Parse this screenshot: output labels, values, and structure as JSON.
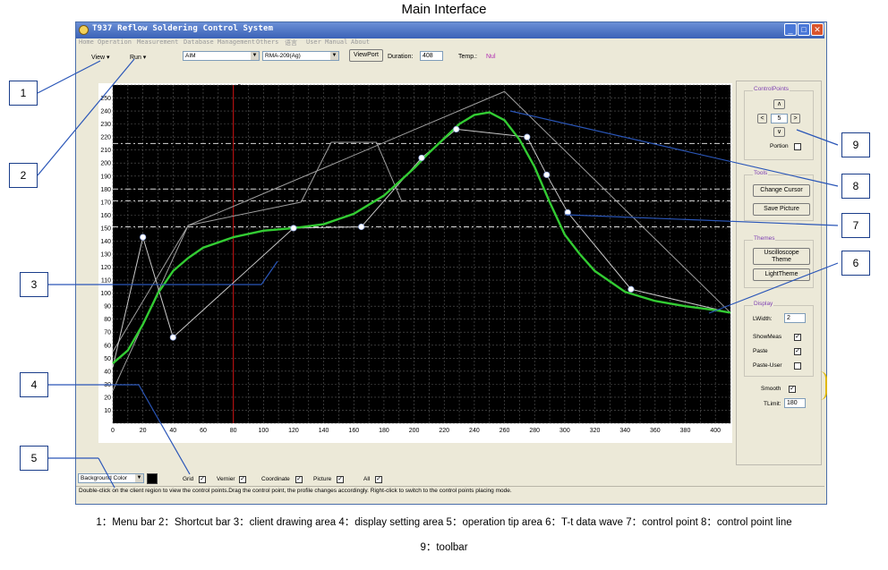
{
  "page_title": "Main Interface",
  "window": {
    "title": "T937 Reflow Soldering Control System"
  },
  "menu": [
    "Home",
    "Operation",
    "Measurement",
    "Database Management",
    "Others",
    "语言",
    "User Manual",
    "About"
  ],
  "shortcut": {
    "view_label": "View ▾",
    "run_label": "Run ▾",
    "device_value": "AIM",
    "alloy_value": "RMA-209(Ag)",
    "viewport_label": "ViewPort",
    "duration_label": "Duration:",
    "duration_value": "408",
    "temp_label": "Temp.:",
    "temp_value": "Nul"
  },
  "cursor_readout": {
    "line1": "5ec",
    "line2": "77.85"
  },
  "chart_data": {
    "type": "line",
    "xlim": [
      0,
      410
    ],
    "ylim": [
      0,
      260
    ],
    "xticks": [
      0,
      20,
      40,
      60,
      80,
      100,
      120,
      140,
      160,
      180,
      200,
      220,
      240,
      260,
      280,
      300,
      320,
      340,
      360,
      380,
      400
    ],
    "yticks": [
      10,
      20,
      30,
      40,
      50,
      60,
      70,
      80,
      90,
      100,
      110,
      120,
      130,
      140,
      150,
      160,
      170,
      180,
      190,
      200,
      210,
      220,
      230,
      240,
      250
    ],
    "grid": true,
    "background": "#000000",
    "series": [
      {
        "role": "T-t data wave",
        "color": "#33cc33",
        "x": [
          0,
          10,
          20,
          30,
          40,
          50,
          60,
          80,
          100,
          120,
          140,
          160,
          180,
          200,
          210,
          220,
          230,
          240,
          250,
          260,
          270,
          280,
          290,
          300,
          310,
          320,
          340,
          360,
          380,
          400,
          410
        ],
        "y": [
          46,
          56,
          76,
          100,
          117,
          127,
          135,
          143,
          148,
          150,
          153,
          161,
          175,
          196,
          208,
          219,
          230,
          237,
          239,
          233,
          218,
          197,
          170,
          145,
          130,
          117,
          101,
          94,
          90,
          87,
          85
        ]
      },
      {
        "role": "control point line",
        "color": "#c8c8c8",
        "x": [
          0,
          20,
          40,
          120,
          165,
          205,
          228,
          275,
          288,
          302,
          344,
          410
        ],
        "y": [
          43,
          143,
          66,
          150,
          151,
          204,
          226,
          220,
          191,
          162,
          103,
          85
        ]
      },
      {
        "role": "reference profile",
        "color": "#a0a0a0",
        "x": [
          0,
          50,
          125,
          145,
          175,
          192
        ],
        "y": [
          25,
          152,
          170,
          216,
          216,
          170
        ]
      },
      {
        "role": "envelope line",
        "color": "#a0a0a0",
        "x": [
          0,
          50,
          260,
          410
        ],
        "y": [
          55,
          152,
          255,
          85
        ]
      }
    ],
    "control_points": [
      {
        "x": 20,
        "y": 143
      },
      {
        "x": 40,
        "y": 66
      },
      {
        "x": 120,
        "y": 150
      },
      {
        "x": 165,
        "y": 151
      },
      {
        "x": 205,
        "y": 204
      },
      {
        "x": 228,
        "y": 226
      },
      {
        "x": 275,
        "y": 220
      },
      {
        "x": 288,
        "y": 191
      },
      {
        "x": 302,
        "y": 162
      },
      {
        "x": 344,
        "y": 103
      }
    ],
    "reference_lines_y": [
      215,
      180,
      171,
      151
    ],
    "cursor_x": 80
  },
  "right_panel": {
    "control_points_title": "ControlPoints",
    "up": "∧",
    "down": "∨",
    "left": "<",
    "right": ">",
    "index_value": "5",
    "portion_label": "Portion",
    "tools_title": "Tools",
    "change_cursor": "Change Cursor",
    "save_picture": "Save Picture",
    "themes_title": "Themes",
    "osc_theme_1": "Uscilloscope",
    "osc_theme_2": "Theme",
    "light_theme": "LightTheme",
    "display_title": "Display",
    "lwidth_label": "LWidth:",
    "lwidth_value": "2",
    "showmeas_label": "ShowMeas",
    "paste_label": "Paste",
    "paste_user_label": "Paste-User",
    "smooth_label": "Smooth",
    "tlimit_label": "TLimit:",
    "tlimit_value": "180"
  },
  "display_settings": {
    "background_color": "Background Color",
    "grid": "Grid",
    "vernier": "Vernier",
    "coordinate": "Coordinate",
    "picture": "Picture",
    "all": "All"
  },
  "tip": "Double-click on the client region to view the control points.Drag the control point, the profile changes accordingly. Right-click to switch to the control points placing mode.",
  "callouts": [
    "1",
    "2",
    "3",
    "4",
    "5",
    "6",
    "7",
    "8",
    "9"
  ],
  "legend": {
    "line1": "1：Menu bar 2：Shortcut bar 3：client drawing area 4：display setting area 5：operation tip area 6：T-t    data wave 7：control point 8：control point line",
    "line2": "9：toolbar"
  },
  "colors": {
    "grid": "#5a5a5a",
    "dashed_reference": "#d8d8d8",
    "cursor_line": "#b01010",
    "callout_border": "#1a3d8a",
    "title_accent": "#7e3fb3"
  }
}
